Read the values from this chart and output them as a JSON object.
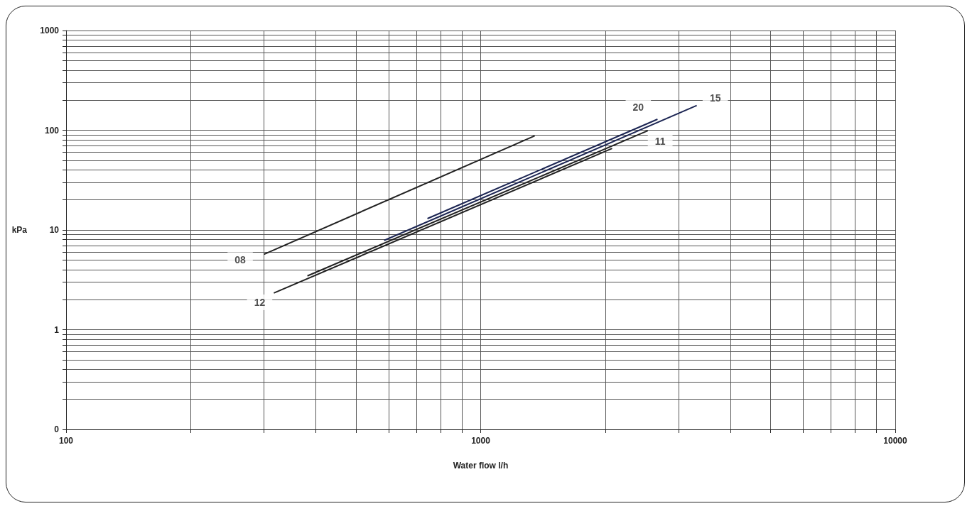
{
  "chart_data": {
    "type": "line",
    "xlabel": "Water flow l/h",
    "ylabel": "kPa",
    "log": "xy",
    "grid": true,
    "marker": "none",
    "line_style": "solid",
    "xlim": [
      100,
      10000
    ],
    "xticks": [
      100,
      {
        "value": 200,
        "label": null
      },
      {
        "value": 300,
        "label": null
      },
      {
        "value": 400,
        "label": null
      },
      {
        "value": 500,
        "label": null
      },
      {
        "value": 600,
        "label": null
      },
      {
        "value": 700,
        "label": null
      },
      {
        "value": 800,
        "label": null
      },
      {
        "value": 900,
        "label": null
      },
      1000,
      {
        "value": 2000,
        "label": null
      },
      {
        "value": 3000,
        "label": null
      },
      {
        "value": 4000,
        "label": null
      },
      {
        "value": 5000,
        "label": null
      },
      {
        "value": 6000,
        "label": null
      },
      {
        "value": 7000,
        "label": null
      },
      {
        "value": 8000,
        "label": null
      },
      {
        "value": 9000,
        "label": null
      },
      10000
    ],
    "ylim": [
      0.1,
      1000
    ],
    "yticks": [
      {
        "value": 0.1,
        "label": "0"
      },
      {
        "value": 0.2,
        "label": null
      },
      {
        "value": 0.3,
        "label": null
      },
      {
        "value": 0.4,
        "label": null
      },
      {
        "value": 0.5,
        "label": null
      },
      {
        "value": 0.6,
        "label": null
      },
      {
        "value": 0.7,
        "label": null
      },
      {
        "value": 0.8,
        "label": null
      },
      {
        "value": 0.9,
        "label": null
      },
      1,
      {
        "value": 2,
        "label": null
      },
      {
        "value": 3,
        "label": null
      },
      {
        "value": 4,
        "label": null
      },
      {
        "value": 5,
        "label": null
      },
      {
        "value": 6,
        "label": null
      },
      {
        "value": 7,
        "label": null
      },
      {
        "value": 8,
        "label": null
      },
      {
        "value": 9,
        "label": null
      },
      10,
      {
        "value": 20,
        "label": null
      },
      {
        "value": 30,
        "label": null
      },
      {
        "value": 40,
        "label": null
      },
      {
        "value": 50,
        "label": null
      },
      {
        "value": 60,
        "label": null
      },
      {
        "value": 70,
        "label": null
      },
      {
        "value": 80,
        "label": null
      },
      {
        "value": 90,
        "label": null
      },
      100,
      {
        "value": 200,
        "label": null
      },
      {
        "value": 300,
        "label": null
      },
      {
        "value": 400,
        "label": null
      },
      {
        "value": 500,
        "label": null
      },
      {
        "value": 600,
        "label": null
      },
      {
        "value": 700,
        "label": null
      },
      {
        "value": 800,
        "label": null
      },
      {
        "value": 900,
        "label": null
      },
      1000
    ],
    "series": [
      {
        "color": "#222222",
        "x": [
          300,
          1350
        ],
        "values": [
          5.7,
          88
        ]
      },
      {
        "color": "#222222",
        "x": [
          317,
          2075
        ],
        "values": [
          2.33,
          65.7
        ]
      },
      {
        "color": "#222222",
        "x": [
          382,
          2530
        ],
        "values": [
          3.46,
          99
        ]
      },
      {
        "color": "#1c2553",
        "x": [
          585,
          3320
        ],
        "values": [
          7.85,
          177
        ]
      },
      {
        "color": "#1c2553",
        "x": [
          744,
          2670
        ],
        "values": [
          13,
          129
        ]
      }
    ],
    "annotations": [
      {
        "text": "08",
        "x": 263,
        "y": 5
      },
      {
        "text": "12",
        "x": 293,
        "y": 1.88
      },
      {
        "text": "20",
        "x": 2400,
        "y": 171
      },
      {
        "text": "15",
        "x": 3680,
        "y": 210
      },
      {
        "text": "11",
        "x": 2710,
        "y": 77
      }
    ]
  }
}
